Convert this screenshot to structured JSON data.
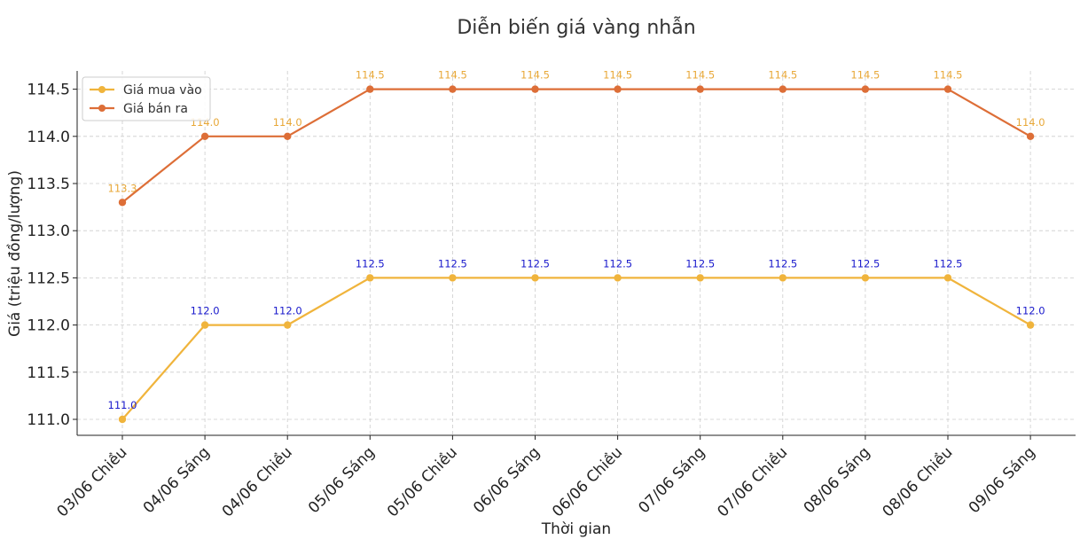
{
  "chart_data": {
    "type": "line",
    "title": "Diễn biến giá vàng nhẫn",
    "xlabel": "Thời gian",
    "ylabel": "Giá (triệu đồng/lượng)",
    "categories": [
      "03/06 Chiều",
      "04/06 Sáng",
      "04/06 Chiều",
      "05/06 Sáng",
      "05/06 Chiều",
      "06/06 Sáng",
      "06/06 Chiều",
      "07/06 Sáng",
      "07/06 Chiều",
      "08/06 Sáng",
      "08/06 Chiều",
      "09/06 Sáng"
    ],
    "yticks": [
      "111.0",
      "111.5",
      "112.0",
      "112.5",
      "113.0",
      "113.5",
      "114.0",
      "114.5"
    ],
    "ylim": [
      110.83,
      114.67
    ],
    "grid": true,
    "legend_position": "top-left",
    "series": [
      {
        "name": "Giá mua vào",
        "color": "#f0b43c",
        "label_color": "#1a1acc",
        "values": [
          111.0,
          112.0,
          112.0,
          112.5,
          112.5,
          112.5,
          112.5,
          112.5,
          112.5,
          112.5,
          112.5,
          112.0
        ],
        "labels": [
          "111.0",
          "112.0",
          "112.0",
          "112.5",
          "112.5",
          "112.5",
          "112.5",
          "112.5",
          "112.5",
          "112.5",
          "112.5",
          "112.0"
        ]
      },
      {
        "name": "Giá bán ra",
        "color": "#dd6e37",
        "label_color": "#e8a838",
        "values": [
          113.3,
          114.0,
          114.0,
          114.5,
          114.5,
          114.5,
          114.5,
          114.5,
          114.5,
          114.5,
          114.5,
          114.0
        ],
        "labels": [
          "113.3",
          "114.0",
          "114.0",
          "114.5",
          "114.5",
          "114.5",
          "114.5",
          "114.5",
          "114.5",
          "114.5",
          "114.5",
          "114.0"
        ]
      }
    ]
  }
}
